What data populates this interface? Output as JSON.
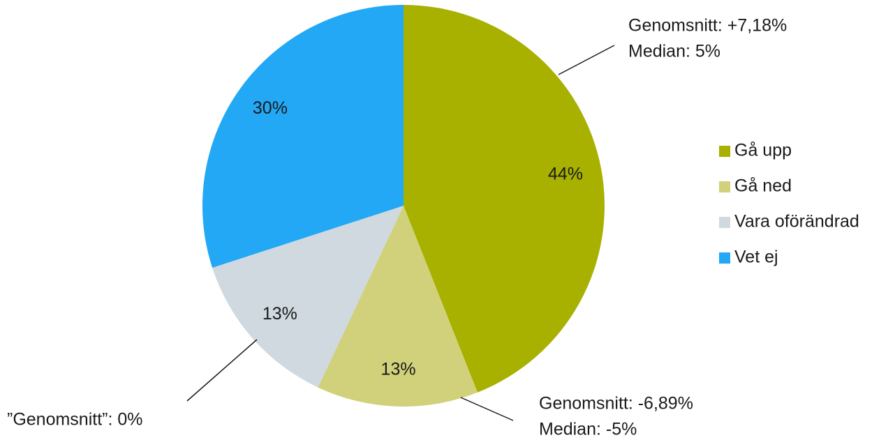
{
  "chart_data": {
    "type": "pie",
    "categories": [
      "Gå upp",
      "Gå ned",
      "Vara oförändrad",
      "Vet ej"
    ],
    "values": [
      44,
      13,
      13,
      30
    ],
    "value_labels": [
      "44%",
      "13%",
      "13%",
      "30%"
    ],
    "colors": [
      "#a8b000",
      "#d0d17a",
      "#cfd9df",
      "#22a8f5"
    ],
    "legend": "right",
    "annotations": [
      {
        "lines": [
          "Genomsnitt: +7,18%",
          "Median: 5%"
        ]
      },
      {
        "lines": [
          "Genomsnitt: -6,89%",
          "Median: -5%"
        ]
      },
      {
        "lines": [
          "”Genomsnitt”: 0%"
        ]
      }
    ]
  }
}
